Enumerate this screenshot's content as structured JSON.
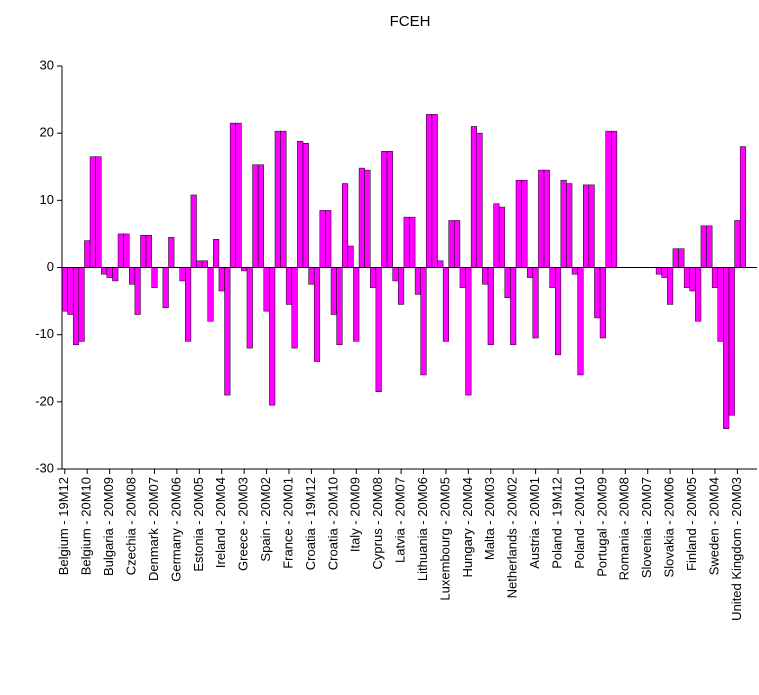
{
  "chart_data": {
    "type": "bar",
    "title": "FCEH",
    "color": "#ff00ff",
    "categories": [
      "Belgium - 19M12",
      null,
      null,
      null,
      "Belgium - 20M10",
      null,
      null,
      null,
      "Bulgaria - 20M09",
      null,
      null,
      null,
      "Czechia - 20M08",
      null,
      null,
      null,
      "Denmark - 20M07",
      null,
      null,
      null,
      "Germany - 20M06",
      null,
      null,
      null,
      "Estonia - 20M05",
      null,
      null,
      null,
      "Ireland - 20M04",
      null,
      null,
      null,
      "Greece - 20M03",
      null,
      null,
      null,
      "Spain - 20M02",
      null,
      null,
      null,
      "France - 20M01",
      null,
      null,
      null,
      "Croatia - 19M12",
      null,
      null,
      null,
      "Croatia - 20M10",
      null,
      null,
      null,
      "Italy - 20M09",
      null,
      null,
      null,
      "Cyprus - 20M08",
      null,
      null,
      null,
      "Latvia - 20M07",
      null,
      null,
      null,
      "Lithuania - 20M06",
      null,
      null,
      null,
      "Luxembourg - 20M05",
      null,
      null,
      null,
      "Hungary - 20M04",
      null,
      null,
      null,
      "Malta - 20M03",
      null,
      null,
      null,
      "Netherlands - 20M02",
      null,
      null,
      null,
      "Austria - 20M01",
      null,
      null,
      null,
      "Poland - 19M12",
      null,
      null,
      null,
      "Poland - 20M10",
      null,
      null,
      null,
      "Portugal - 20M09",
      null,
      null,
      null,
      "Romania - 20M08",
      null,
      null,
      null,
      "Slovenia - 20M07",
      null,
      null,
      null,
      "Slovakia - 20M06",
      null,
      null,
      null,
      "Finland - 20M05",
      null,
      null,
      null,
      "Sweden - 20M04",
      null,
      null,
      null,
      "United Kingdom - 20M03",
      null,
      null,
      null
    ],
    "values": [
      -6.5,
      -7,
      -11.5,
      -11,
      4,
      16.5,
      16.5,
      -1,
      -1.5,
      -2,
      5,
      5,
      -2.5,
      -7,
      4.8,
      4.8,
      -3,
      null,
      -6,
      4.5,
      null,
      -2,
      -11,
      10.8,
      1,
      1,
      -8,
      4.2,
      -3.5,
      -19,
      21.5,
      21.5,
      -0.5,
      -12,
      15.3,
      15.3,
      -6.5,
      -20.5,
      20.3,
      20.3,
      -5.5,
      -12,
      18.8,
      18.5,
      -2.5,
      -14,
      8.5,
      8.5,
      -7,
      -11.5,
      12.5,
      3.2,
      -11,
      14.8,
      14.5,
      -3,
      -18.5,
      17.3,
      17.3,
      -2,
      -5.5,
      7.5,
      7.5,
      -4,
      -16,
      22.8,
      22.8,
      1,
      -11,
      7,
      7,
      -3,
      -19,
      21,
      20,
      -2.5,
      -11.5,
      9.5,
      9,
      -4.5,
      -11.5,
      13,
      13,
      -1.5,
      -10.5,
      14.5,
      14.5,
      -3,
      -13,
      13,
      12.5,
      -1,
      -16,
      12.3,
      12.3,
      -7.5,
      -10.5,
      20.3,
      20.3,
      null,
      null,
      null,
      null,
      null,
      null,
      null,
      -1,
      -1.5,
      -5.5,
      2.8,
      2.8,
      -3,
      -3.5,
      -8,
      6.2,
      6.2,
      -3,
      -11,
      -24,
      -22,
      7,
      18,
      null,
      null
    ],
    "ylim": [
      -30,
      30
    ],
    "yticks": [
      -30,
      -20,
      -10,
      0,
      10,
      20,
      30
    ]
  }
}
